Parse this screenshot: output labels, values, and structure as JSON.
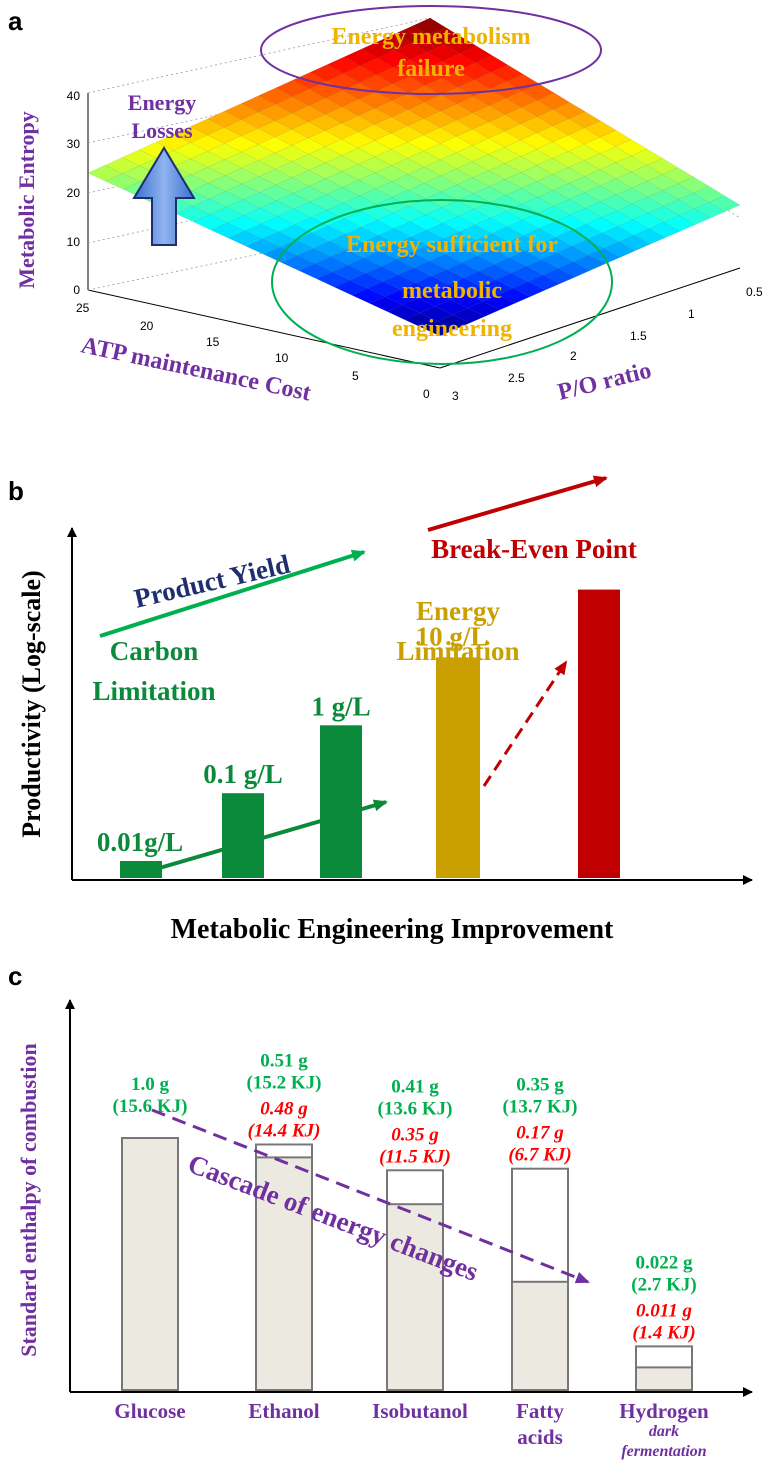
{
  "colors": {
    "purple": "#7030a0",
    "green": "#00b050",
    "dark_green": "#0a8a3a",
    "gold": "#f0b400",
    "dark_gold": "#c9a000",
    "dark_red": "#c00000",
    "navy": "#1f2e6e",
    "red": "#ff0000",
    "bar_fill": "#eceae0",
    "dashed_purple": "#7030a0"
  },
  "panel_a": {
    "letter": "a",
    "zlabel": "Metabolic Entropy",
    "xlabel": "ATP maintenance Cost",
    "ylabel": "P/O ratio",
    "z_ticks": [
      "0",
      "10",
      "20",
      "30",
      "40"
    ],
    "x_ticks": [
      "25",
      "20",
      "15",
      "10",
      "5",
      "0"
    ],
    "y_ticks": [
      "3",
      "2.5",
      "2",
      "1.5",
      "1",
      "0.5"
    ],
    "ann_failure": [
      "Energy metabolism",
      "failure"
    ],
    "ann_losses": [
      "Energy",
      "Losses"
    ],
    "ann_sufficient": [
      "Energy sufficient for",
      "metabolic",
      "engineering"
    ]
  },
  "panel_b": {
    "letter": "b",
    "ylabel": "Productivity (Log-scale)",
    "xlabel": "Metabolic Engineering Improvement",
    "product_yield": "Product Yield",
    "break_even": "Break-Even Point",
    "carbon_limitation": [
      "Carbon",
      "Limitation"
    ],
    "energy_limitation": [
      "Energy",
      "Limitation"
    ]
  },
  "panel_c": {
    "letter": "c",
    "ylabel": "Standard enthalpy of combustion",
    "cascade": "Cascade of energy changes",
    "hydrogen_sub": [
      "dark",
      "fermentation"
    ]
  },
  "chart_data": [
    {
      "type": "surface",
      "title": "",
      "zlabel": "Metabolic Entropy",
      "xlabel": "ATP maintenance Cost",
      "ylabel": "P/O ratio",
      "xlim": [
        0,
        25
      ],
      "ylim": [
        0.5,
        3
      ],
      "zlim": [
        0,
        40
      ],
      "corners": [
        {
          "atp": 25,
          "po": 0.5,
          "entropy": 22
        },
        {
          "atp": 0,
          "po": 0.5,
          "entropy": 40
        },
        {
          "atp": 0,
          "po": 3,
          "entropy": 18
        },
        {
          "atp": 25,
          "po": 3,
          "entropy": 0
        }
      ]
    },
    {
      "type": "bar",
      "title": "",
      "xlabel": "Metabolic Engineering Improvement",
      "ylabel": "Productivity (Log-scale)",
      "categories": [
        "0.01g/L",
        "0.1 g/L",
        "1 g/L",
        "10 g/L",
        "Break-Even Point"
      ],
      "values": [
        0.01,
        0.1,
        1,
        10,
        100
      ],
      "colors": [
        "#0a8a3a",
        "#0a8a3a",
        "#0a8a3a",
        "#c9a000",
        "#c00000"
      ]
    },
    {
      "type": "bar",
      "title": "",
      "xlabel": "",
      "ylabel": "Standard enthalpy of combustion",
      "categories": [
        "Glucose",
        "Ethanol",
        "Isobutanol",
        "Fatty acids",
        "Hydrogen"
      ],
      "mass_g": [
        "1.0 g",
        "0.51 g",
        "0.41 g",
        "0.35 g",
        "0.022 g"
      ],
      "total_kj_label": [
        "(15.6 KJ)",
        "(15.2 KJ)",
        "(13.6 KJ)",
        "(13.7 KJ)",
        "(2.7 KJ)"
      ],
      "sub_mass_g": [
        null,
        "0.48 g",
        "0.35 g",
        "0.17 g",
        "0.011 g"
      ],
      "sub_kj_label": [
        null,
        "(14.4 KJ)",
        "(11.5 KJ)",
        "(6.7 KJ)",
        "(1.4 KJ)"
      ],
      "total_kj": [
        15.6,
        15.2,
        13.6,
        13.7,
        2.7
      ],
      "sub_kj": [
        15.6,
        14.4,
        11.5,
        6.7,
        1.4
      ]
    }
  ]
}
